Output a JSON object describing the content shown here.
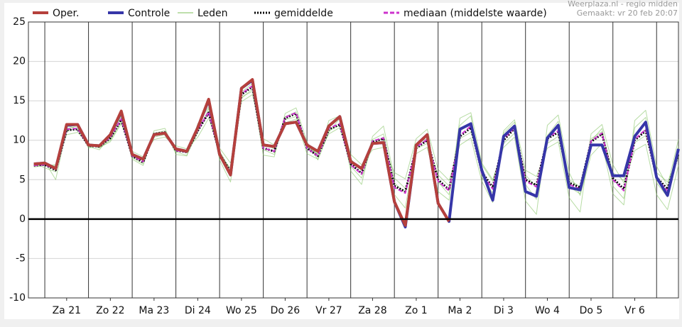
{
  "chart_data": {
    "type": "line",
    "source": "Weerplaza.nl - regio midden",
    "made": "Gemaakt: vr 20 feb 20:07",
    "xlim": [
      0.625,
      15.5
    ],
    "ylim": [
      -10,
      25
    ],
    "yticks": [
      -10,
      -5,
      0,
      5,
      10,
      15,
      20,
      25
    ],
    "xticks": [
      {
        "value": 1.5,
        "label": "Za 21"
      },
      {
        "value": 2.5,
        "label": "Zo 22"
      },
      {
        "value": 3.5,
        "label": "Ma 23"
      },
      {
        "value": 4.5,
        "label": "Di 24"
      },
      {
        "value": 5.5,
        "label": "Wo 25"
      },
      {
        "value": 6.5,
        "label": "Do 26"
      },
      {
        "value": 7.5,
        "label": "Vr 27"
      },
      {
        "value": 8.5,
        "label": "Za 28"
      },
      {
        "value": 9.5,
        "label": "Zo 1"
      },
      {
        "value": 10.5,
        "label": "Ma 2"
      },
      {
        "value": 11.5,
        "label": "Di 3"
      },
      {
        "value": 12.5,
        "label": "Wo 4"
      },
      {
        "value": 13.5,
        "label": "Do 5"
      },
      {
        "value": 14.5,
        "label": "Vr 6"
      }
    ],
    "grid": true,
    "x": [
      0.75,
      1,
      1.25,
      1.5,
      1.75,
      2,
      2.25,
      2.5,
      2.75,
      3,
      3.25,
      3.5,
      3.75,
      4,
      4.25,
      4.5,
      4.75,
      5,
      5.25,
      5.5,
      5.75,
      6,
      6.25,
      6.5,
      6.75,
      7,
      7.25,
      7.5,
      7.75,
      8,
      8.25,
      8.5,
      8.75,
      9,
      9.25,
      9.5,
      9.75,
      10,
      10.25,
      10.5,
      10.75,
      11,
      11.25,
      11.5,
      11.75,
      12,
      12.25,
      12.5,
      12.75,
      13,
      13.25,
      13.5,
      13.75,
      14,
      14.25,
      14.5,
      14.75,
      15,
      15.25,
      15.5
    ],
    "series": [
      {
        "name": "Oper.",
        "color": "#b5403c",
        "values": [
          7.0,
          7.1,
          6.4,
          12.0,
          12.0,
          9.4,
          9.3,
          10.7,
          13.7,
          8.2,
          7.6,
          10.7,
          10.9,
          8.9,
          8.6,
          11.6,
          15.2,
          8.2,
          5.6,
          16.6,
          17.7,
          9.4,
          9.2,
          12.1,
          12.3,
          9.4,
          8.6,
          11.8,
          13.0,
          7.3,
          6.4,
          9.6,
          9.7,
          2.2,
          -0.8,
          9.4,
          10.7,
          2.0,
          -0.3,
          null,
          null,
          null,
          null,
          null,
          null,
          null,
          null,
          null,
          null,
          null,
          null,
          null,
          null,
          null,
          null,
          null,
          null,
          null,
          null,
          null
        ]
      },
      {
        "name": "Controle",
        "color": "#3636a8",
        "values": [
          7.0,
          7.1,
          6.4,
          11.9,
          12.0,
          9.4,
          9.3,
          10.7,
          13.6,
          8.2,
          7.6,
          10.7,
          10.9,
          8.9,
          8.6,
          11.6,
          15.1,
          8.2,
          5.6,
          16.6,
          17.6,
          9.4,
          9.2,
          12.1,
          12.3,
          9.4,
          8.6,
          11.8,
          13.0,
          7.3,
          6.4,
          9.6,
          9.7,
          2.2,
          -1.0,
          9.4,
          10.7,
          2.0,
          -0.3,
          11.4,
          12.1,
          6.2,
          2.4,
          10.5,
          11.8,
          3.5,
          2.9,
          10.3,
          11.9,
          4.0,
          3.7,
          9.4,
          9.4,
          5.5,
          5.5,
          10.5,
          12.3,
          5.3,
          3.0,
          8.9
        ]
      },
      {
        "name": "Leden",
        "color": "#7cbf5a",
        "members": [
          [
            6.9,
            7.3,
            5.0,
            11.5,
            11.8,
            9.0,
            9.4,
            10.1,
            12.9,
            7.6,
            6.8,
            11.2,
            11.5,
            8.2,
            8.0,
            12.1,
            14.2,
            7.5,
            4.7,
            15.3,
            16.5,
            8.1,
            7.9,
            13.4,
            14.1,
            9.8,
            7.5,
            11.0,
            12.8,
            6.1,
            4.4,
            10.5,
            11.8,
            5.2,
            3.9,
            8.3,
            9.1,
            3.5,
            2.4,
            12.8,
            13.5,
            7.1,
            5.0,
            9.1,
            10.4,
            2.3,
            0.6,
            11.9,
            13.2,
            5.9,
            3.0,
            8.1,
            9.6,
            3.2,
            1.8,
            12.5,
            13.8,
            6.7,
            4.2,
            10.1
          ],
          [
            6.6,
            6.8,
            6.9,
            10.7,
            11.0,
            9.6,
            9.1,
            9.8,
            12.1,
            8.6,
            7.9,
            10.1,
            10.4,
            9.3,
            8.9,
            10.4,
            12.8,
            9.0,
            7.1,
            14.9,
            15.8,
            10.2,
            9.4,
            12.2,
            12.7,
            8.3,
            7.6,
            12.5,
            13.1,
            8.2,
            6.9,
            8.8,
            9.1,
            5.9,
            5.1,
            10.2,
            11.4,
            6.3,
            4.9,
            9.4,
            10.3,
            4.8,
            2.1,
            11.2,
            12.6,
            6.2,
            5.4,
            9.0,
            9.8,
            2.7,
            0.9,
            10.8,
            12.0,
            6.9,
            4.6,
            8.7,
            9.5,
            3.1,
            1.2,
            6.8
          ],
          [
            7.1,
            6.5,
            6.0,
            11.9,
            11.4,
            9.2,
            8.8,
            10.5,
            13.1,
            7.8,
            7.0,
            10.9,
            11.2,
            8.5,
            8.1,
            11.0,
            14.0,
            8.6,
            6.2,
            16.1,
            17.2,
            8.8,
            8.2,
            13.0,
            13.6,
            9.1,
            8.3,
            11.2,
            11.9,
            6.7,
            5.2,
            9.4,
            10.4,
            3.1,
            1.4,
            9.6,
            10.2,
            4.7,
            3.1,
            11.9,
            13.1,
            5.3,
            3.3,
            10.9,
            12.3,
            4.4,
            2.5,
            10.6,
            12.4,
            5.0,
            4.1,
            9.9,
            11.5,
            4.2,
            2.6,
            11.6,
            12.9,
            4.6,
            2.8,
            9.2
          ],
          [
            6.7,
            7.0,
            6.7,
            11.1,
            11.6,
            9.5,
            9.0,
            10.0,
            12.3,
            8.3,
            7.4,
            10.4,
            10.7,
            8.8,
            8.4,
            11.4,
            13.3,
            8.0,
            6.5,
            15.5,
            16.2,
            9.6,
            8.9,
            12.6,
            13.0,
            9.6,
            8.1,
            10.8,
            11.6,
            7.6,
            6.2,
            10.1,
            10.8,
            4.6,
            3.3,
            8.9,
            9.6,
            5.6,
            4.2,
            10.2,
            11.0,
            6.9,
            4.8,
            9.6,
            10.9,
            5.6,
            4.0,
            9.6,
            10.5,
            4.1,
            3.2,
            10.2,
            11.1,
            5.9,
            4.9,
            9.7,
            10.6,
            5.9,
            4.7,
            7.8
          ]
        ]
      },
      {
        "name": "gemiddelde",
        "color": "#000000",
        "values": [
          6.8,
          6.9,
          6.2,
          11.3,
          11.4,
          9.3,
          9.2,
          10.3,
          12.6,
          8.0,
          7.2,
          10.8,
          11.0,
          8.7,
          8.5,
          11.2,
          13.5,
          8.3,
          6.0,
          15.8,
          16.8,
          9.0,
          8.6,
          12.8,
          13.4,
          9.0,
          8.0,
          11.4,
          12.0,
          7.0,
          5.8,
          9.8,
          10.2,
          4.2,
          3.5,
          9.0,
          10.0,
          5.0,
          3.7,
          10.5,
          11.6,
          6.0,
          4.0,
          10.0,
          11.5,
          5.0,
          4.3,
          10.2,
          11.0,
          4.6,
          4.0,
          9.8,
          10.8,
          5.2,
          3.8,
          10.0,
          11.2,
          5.3,
          3.8,
          8.3
        ]
      },
      {
        "name": "mediaan (middelste waarde)",
        "color": "#cc33cc",
        "values": [
          6.8,
          6.9,
          6.3,
          11.4,
          11.5,
          9.3,
          9.2,
          10.4,
          12.7,
          8.0,
          7.3,
          10.8,
          11.0,
          8.7,
          8.5,
          11.3,
          13.6,
          8.2,
          5.9,
          15.9,
          16.9,
          9.0,
          8.6,
          12.9,
          13.5,
          9.0,
          8.0,
          11.5,
          12.1,
          6.9,
          5.7,
          9.9,
          10.3,
          4.0,
          3.3,
          9.1,
          10.1,
          4.8,
          3.6,
          10.6,
          11.8,
          5.8,
          3.8,
          10.2,
          11.6,
          4.8,
          4.1,
          10.3,
          11.2,
          4.4,
          3.8,
          9.9,
          10.9,
          5.0,
          3.6,
          10.1,
          11.4,
          5.1,
          3.6,
          8.5
        ]
      }
    ]
  }
}
